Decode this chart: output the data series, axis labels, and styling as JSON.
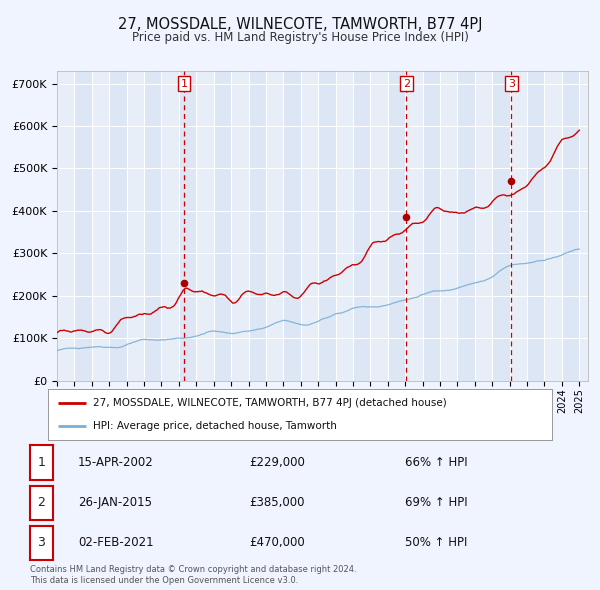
{
  "title": "27, MOSSDALE, WILNECOTE, TAMWORTH, B77 4PJ",
  "subtitle": "Price paid vs. HM Land Registry's House Price Index (HPI)",
  "background_color": "#f0f4ff",
  "plot_bg_color": "#dce6f5",
  "alt_col_color": "#e8eef8",
  "red_line_color": "#cc0000",
  "blue_line_color": "#7bafd4",
  "sale_marker_color": "#aa0000",
  "vline_color": "#cc0000",
  "grid_color": "#c8d4e8",
  "transactions": [
    {
      "date": 2002.29,
      "price": 229000,
      "label": "1"
    },
    {
      "date": 2015.07,
      "price": 385000,
      "label": "2"
    },
    {
      "date": 2021.09,
      "price": 470000,
      "label": "3"
    }
  ],
  "transaction_dates_str": [
    "15-APR-2002",
    "26-JAN-2015",
    "02-FEB-2021"
  ],
  "transaction_prices_str": [
    "£229,000",
    "£385,000",
    "£470,000"
  ],
  "transaction_pct_str": [
    "66% ↑ HPI",
    "69% ↑ HPI",
    "50% ↑ HPI"
  ],
  "legend_line1": "27, MOSSDALE, WILNECOTE, TAMWORTH, B77 4PJ (detached house)",
  "legend_line2": "HPI: Average price, detached house, Tamworth",
  "footer1": "Contains HM Land Registry data © Crown copyright and database right 2024.",
  "footer2": "This data is licensed under the Open Government Licence v3.0.",
  "yticks": [
    0,
    100000,
    200000,
    300000,
    400000,
    500000,
    600000,
    700000
  ],
  "ytick_labels": [
    "£0",
    "£100K",
    "£200K",
    "£300K",
    "£400K",
    "£500K",
    "£600K",
    "£700K"
  ],
  "xstart": 1995,
  "xend": 2025
}
